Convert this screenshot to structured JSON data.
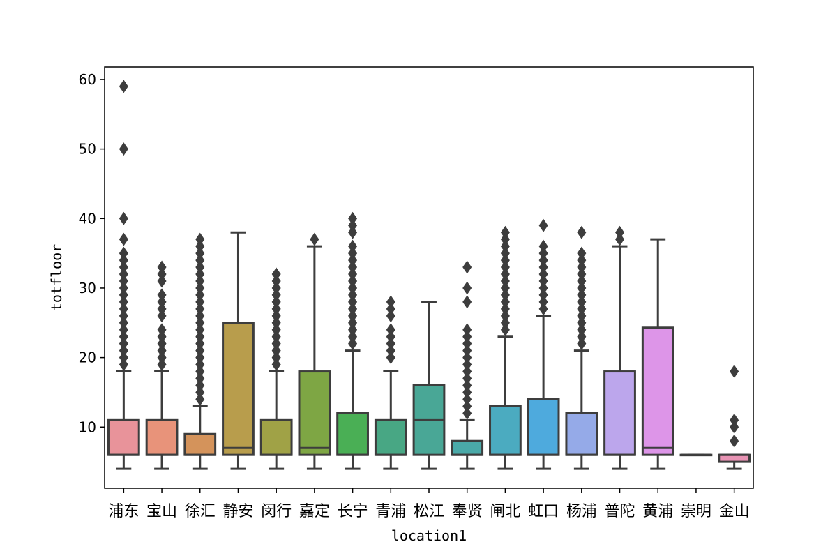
{
  "chart_data": {
    "type": "box",
    "title": "",
    "xlabel": "location1",
    "ylabel": "totfloor",
    "ylim": [
      1.2,
      61.8
    ],
    "yticks": [
      10,
      20,
      30,
      40,
      50,
      60
    ],
    "grid": false,
    "legend": "none",
    "categories": [
      {
        "name": "浦东",
        "color": "#e8939a",
        "q1": 6,
        "median": 6,
        "q3": 11,
        "whisker_low": 4,
        "whisker_high": 18,
        "outliers": [
          19,
          20,
          21,
          22,
          23,
          24,
          25,
          26,
          27,
          28,
          29,
          30,
          31,
          32,
          33,
          34,
          35,
          37,
          40,
          50,
          59
        ]
      },
      {
        "name": "宝山",
        "color": "#e8937a",
        "q1": 6,
        "median": 6,
        "q3": 11,
        "whisker_low": 4,
        "whisker_high": 18,
        "outliers": [
          19,
          20,
          21,
          22,
          23,
          24,
          26,
          27,
          28,
          29,
          31,
          32,
          33
        ]
      },
      {
        "name": "徐汇",
        "color": "#d4935b",
        "q1": 6,
        "median": 6,
        "q3": 9,
        "whisker_low": 4,
        "whisker_high": 13,
        "outliers": [
          14,
          15,
          16,
          17,
          18,
          19,
          20,
          21,
          22,
          23,
          24,
          25,
          26,
          27,
          28,
          29,
          30,
          31,
          32,
          33,
          34,
          35,
          36,
          37
        ]
      },
      {
        "name": "静安",
        "color": "#b89d4c",
        "q1": 6,
        "median": 7,
        "q3": 25,
        "whisker_low": 4,
        "whisker_high": 38,
        "outliers": []
      },
      {
        "name": "闵行",
        "color": "#a0a246",
        "q1": 6,
        "median": 6,
        "q3": 11,
        "whisker_low": 4,
        "whisker_high": 18,
        "outliers": [
          19,
          20,
          21,
          22,
          23,
          24,
          25,
          26,
          27,
          28,
          29,
          30,
          31,
          32
        ]
      },
      {
        "name": "嘉定",
        "color": "#7ea644",
        "q1": 6,
        "median": 7,
        "q3": 18,
        "whisker_low": 4,
        "whisker_high": 36,
        "outliers": [
          37
        ]
      },
      {
        "name": "长宁",
        "color": "#4aaf55",
        "q1": 6,
        "median": 6,
        "q3": 12,
        "whisker_low": 4,
        "whisker_high": 21,
        "outliers": [
          22,
          23,
          24,
          25,
          26,
          27,
          28,
          29,
          30,
          31,
          32,
          33,
          34,
          35,
          36,
          38,
          39,
          40
        ]
      },
      {
        "name": "青浦",
        "color": "#48a784",
        "q1": 6,
        "median": 6,
        "q3": 11,
        "whisker_low": 4,
        "whisker_high": 18,
        "outliers": [
          20,
          21,
          22,
          23,
          24,
          26,
          27,
          28
        ]
      },
      {
        "name": "松江",
        "color": "#49a796",
        "q1": 6,
        "median": 11,
        "q3": 16,
        "whisker_low": 4,
        "whisker_high": 28,
        "outliers": []
      },
      {
        "name": "奉贤",
        "color": "#4aa9a8",
        "q1": 6,
        "median": 6,
        "q3": 8,
        "whisker_low": 4,
        "whisker_high": 11,
        "outliers": [
          12,
          13,
          14,
          15,
          16,
          17,
          18,
          19,
          20,
          21,
          22,
          23,
          24,
          28,
          30,
          33
        ]
      },
      {
        "name": "闸北",
        "color": "#4babc0",
        "q1": 6,
        "median": 6,
        "q3": 13,
        "whisker_low": 4,
        "whisker_high": 23,
        "outliers": [
          24,
          25,
          26,
          27,
          28,
          29,
          30,
          31,
          32,
          33,
          34,
          35,
          36,
          37,
          38
        ]
      },
      {
        "name": "虹口",
        "color": "#4eaadd",
        "q1": 6,
        "median": 6,
        "q3": 14,
        "whisker_low": 4,
        "whisker_high": 26,
        "outliers": [
          27,
          28,
          29,
          30,
          31,
          32,
          33,
          34,
          35,
          36,
          39
        ]
      },
      {
        "name": "杨浦",
        "color": "#95aae8",
        "q1": 6,
        "median": 6,
        "q3": 12,
        "whisker_low": 4,
        "whisker_high": 21,
        "outliers": [
          22,
          23,
          24,
          25,
          26,
          27,
          28,
          29,
          30,
          31,
          32,
          33,
          34,
          35,
          38
        ]
      },
      {
        "name": "普陀",
        "color": "#bca6ec",
        "q1": 6,
        "median": 6,
        "q3": 18,
        "whisker_low": 4,
        "whisker_high": 36,
        "outliers": [
          37,
          38
        ]
      },
      {
        "name": "黄浦",
        "color": "#dd95e8",
        "q1": 6,
        "median": 7,
        "q3": 24.3,
        "whisker_low": 4,
        "whisker_high": 37,
        "outliers": []
      },
      {
        "name": "崇明",
        "color": "#e895cc",
        "q1": 6,
        "median": 6,
        "q3": 6,
        "whisker_low": 6,
        "whisker_high": 6,
        "outliers": []
      },
      {
        "name": "金山",
        "color": "#e893b4",
        "q1": 5,
        "median": 6,
        "q3": 6,
        "whisker_low": 4,
        "whisker_high": 6,
        "outliers": [
          8,
          10,
          11,
          18
        ]
      }
    ]
  }
}
